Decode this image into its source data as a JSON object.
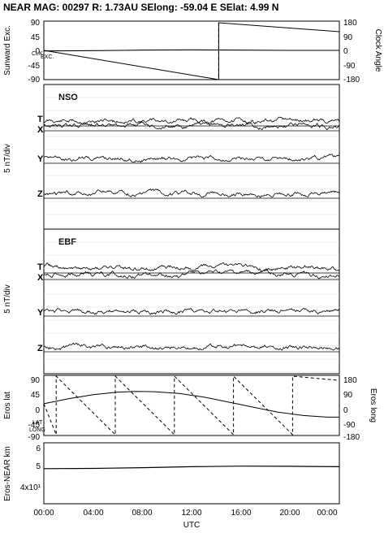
{
  "header": {
    "title": "NEAR MAG: 00297  R: 1.73AU  SElong:  -59.04 E  SElat:    4.99 N"
  },
  "chart_data": [
    {
      "type": "line",
      "ylabel_left": "Sunward Exc.",
      "ylabel_right": "Clock Angle",
      "ylim_left": [
        -90,
        90
      ],
      "ylim_right": [
        -180,
        180
      ],
      "yticks_left": [
        "90",
        "45",
        "0",
        "-45",
        "-90"
      ],
      "yticks_right": [
        "180",
        "90",
        "0",
        "-90",
        "-180"
      ],
      "inline_labels": [
        "CLK",
        "EXC."
      ],
      "series": [
        {
          "axis": "right",
          "style": "solid",
          "points": [
            [
              0.0,
              0
            ],
            [
              14.2,
              -180
            ],
            [
              14.2,
              170
            ],
            [
              24.0,
              115
            ]
          ]
        },
        {
          "axis": "left",
          "style": "solid",
          "points": [
            [
              0.0,
              -2
            ],
            [
              4.0,
              -1
            ],
            [
              8.0,
              1
            ],
            [
              12.0,
              2
            ],
            [
              16.0,
              1
            ],
            [
              20.0,
              0
            ],
            [
              24.0,
              0
            ]
          ]
        }
      ]
    },
    {
      "type": "line",
      "panel_label": "NSO",
      "ylabel": "5 nT/div",
      "traces": [
        "T",
        "X",
        "Y",
        "Z"
      ]
    },
    {
      "type": "line",
      "panel_label": "EBF",
      "ylabel": "5 nT/div",
      "traces": [
        "T",
        "X",
        "Y",
        "Z"
      ]
    },
    {
      "type": "line",
      "ylabel_left": "Eros lat",
      "ylabel_right": "Eros long",
      "ylim_left": [
        -90,
        90
      ],
      "ylim_right": [
        -180,
        180
      ],
      "yticks_left": [
        "90",
        "45",
        "0",
        "-45",
        "-90"
      ],
      "yticks_right": [
        "180",
        "90",
        "0",
        "-90",
        "-180"
      ],
      "inline_labels": [
        "LAT",
        "LONG"
      ],
      "series": [
        {
          "name": "LAT",
          "axis": "left",
          "style": "solid",
          "points": [
            [
              0.0,
              5
            ],
            [
              2.0,
              20
            ],
            [
              4.0,
              32
            ],
            [
              6.0,
              40
            ],
            [
              7.5,
              42
            ],
            [
              9.0,
              41
            ],
            [
              11.0,
              36
            ],
            [
              13.0,
              25
            ],
            [
              15.0,
              10
            ],
            [
              17.0,
              -5
            ],
            [
              19.0,
              -20
            ],
            [
              21.0,
              -30
            ],
            [
              23.0,
              -35
            ],
            [
              24.0,
              -35
            ]
          ]
        },
        {
          "name": "LONG",
          "axis": "right",
          "style": "dashed",
          "points": [
            [
              0.0,
              10
            ],
            [
              1.0,
              -175
            ],
            [
              1.0,
              175
            ],
            [
              5.8,
              -175
            ],
            [
              5.8,
              175
            ],
            [
              10.6,
              -175
            ],
            [
              10.6,
              175
            ],
            [
              15.4,
              -175
            ],
            [
              15.4,
              175
            ],
            [
              20.2,
              -175
            ],
            [
              20.2,
              175
            ],
            [
              24.0,
              150
            ]
          ]
        }
      ]
    },
    {
      "type": "line",
      "ylabel": "Eros-NEAR km",
      "yscale": "log",
      "yticks": [
        "6",
        "5",
        "4x10¹"
      ],
      "series": [
        {
          "style": "solid",
          "points": [
            [
              0.0,
              50
            ],
            [
              4.0,
              50.1
            ],
            [
              8.0,
              50.5
            ],
            [
              12.0,
              51
            ],
            [
              16.0,
              51.3
            ],
            [
              20.0,
              51.2
            ],
            [
              24.0,
              51
            ]
          ]
        }
      ]
    }
  ],
  "xaxis": {
    "ticks": [
      "00:00",
      "04:00",
      "08:00",
      "12:00",
      "16:00",
      "20:00",
      "00:00"
    ],
    "label": "UTC"
  }
}
